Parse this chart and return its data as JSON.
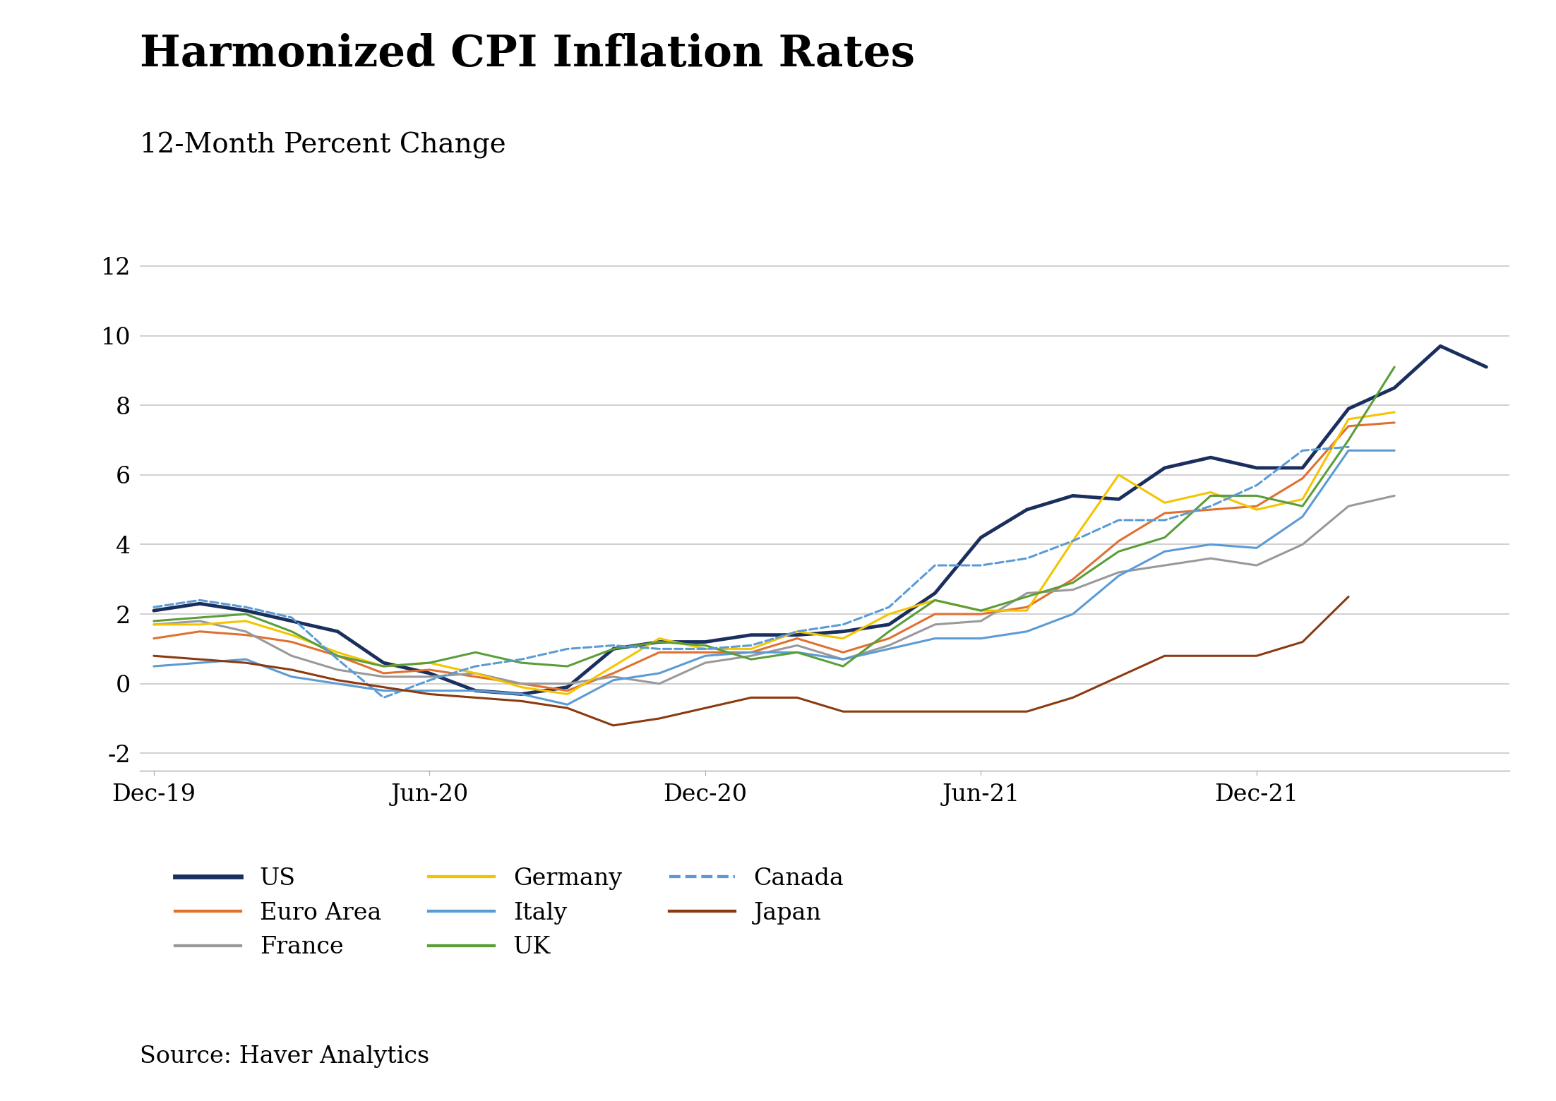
{
  "title": "Harmonized CPI Inflation Rates",
  "subtitle": "12-Month Percent Change",
  "source": "Source: Haver Analytics",
  "ylim": [
    -2.5,
    13.0
  ],
  "yticks": [
    -2,
    0,
    2,
    4,
    6,
    8,
    10,
    12
  ],
  "background_color": "#ffffff",
  "grid_color": "#c8c8c8",
  "series": {
    "US": {
      "color": "#1a2f5e",
      "linewidth": 3.5,
      "linestyle": "solid",
      "data": [
        2.1,
        2.3,
        2.1,
        1.8,
        1.5,
        0.6,
        0.3,
        -0.2,
        -0.3,
        -0.1,
        1.0,
        1.2,
        1.2,
        1.4,
        1.4,
        1.5,
        1.7,
        2.6,
        4.2,
        5.0,
        5.4,
        5.3,
        6.2,
        6.5,
        6.2,
        6.2,
        7.9,
        8.5,
        9.7,
        9.1
      ]
    },
    "Euro Area": {
      "color": "#e07030",
      "linewidth": 2.2,
      "linestyle": "solid",
      "data": [
        1.3,
        1.5,
        1.4,
        1.2,
        0.8,
        0.3,
        0.4,
        0.2,
        0.0,
        -0.2,
        0.3,
        0.9,
        0.9,
        0.9,
        1.3,
        0.9,
        1.3,
        2.0,
        2.0,
        2.2,
        3.0,
        4.1,
        4.9,
        5.0,
        5.1,
        5.9,
        7.4,
        7.5
      ]
    },
    "France": {
      "color": "#999999",
      "linewidth": 2.2,
      "linestyle": "solid",
      "data": [
        1.7,
        1.8,
        1.5,
        0.8,
        0.4,
        0.2,
        0.2,
        0.3,
        0.0,
        0.0,
        0.2,
        0.0,
        0.6,
        0.8,
        1.1,
        0.7,
        1.1,
        1.7,
        1.8,
        2.6,
        2.7,
        3.2,
        3.4,
        3.6,
        3.4,
        4.0,
        5.1,
        5.4
      ]
    },
    "Germany": {
      "color": "#f5c400",
      "linewidth": 2.2,
      "linestyle": "solid",
      "data": [
        1.7,
        1.7,
        1.8,
        1.4,
        0.9,
        0.5,
        0.6,
        0.3,
        -0.1,
        -0.3,
        0.5,
        1.3,
        1.0,
        1.0,
        1.5,
        1.3,
        2.0,
        2.4,
        2.1,
        2.1,
        4.1,
        6.0,
        5.2,
        5.5,
        5.0,
        5.3,
        7.6,
        7.8
      ]
    },
    "Italy": {
      "color": "#5b9bd5",
      "linewidth": 2.2,
      "linestyle": "solid",
      "data": [
        0.5,
        0.6,
        0.7,
        0.2,
        0.0,
        -0.2,
        -0.2,
        -0.2,
        -0.3,
        -0.6,
        0.1,
        0.3,
        0.8,
        0.9,
        0.9,
        0.7,
        1.0,
        1.3,
        1.3,
        1.5,
        2.0,
        3.1,
        3.8,
        4.0,
        3.9,
        4.8,
        6.7,
        6.7
      ]
    },
    "UK": {
      "color": "#5a9e3a",
      "linewidth": 2.2,
      "linestyle": "solid",
      "data": [
        1.8,
        1.9,
        2.0,
        1.5,
        0.8,
        0.5,
        0.6,
        0.9,
        0.6,
        0.5,
        1.0,
        1.2,
        1.1,
        0.7,
        0.9,
        0.5,
        1.5,
        2.4,
        2.1,
        2.5,
        2.9,
        3.8,
        4.2,
        5.4,
        5.4,
        5.1,
        7.0,
        9.1
      ]
    },
    "Canada": {
      "color": "#5b9bd5",
      "linewidth": 2.2,
      "linestyle": "dashed",
      "data": [
        2.2,
        2.4,
        2.2,
        1.9,
        0.7,
        -0.4,
        0.1,
        0.5,
        0.7,
        1.0,
        1.1,
        1.0,
        1.0,
        1.1,
        1.5,
        1.7,
        2.2,
        3.4,
        3.4,
        3.6,
        4.1,
        4.7,
        4.7,
        5.1,
        5.7,
        6.7,
        6.8
      ]
    },
    "Japan": {
      "color": "#8b3a0f",
      "linewidth": 2.2,
      "linestyle": "solid",
      "data": [
        0.8,
        0.7,
        0.6,
        0.4,
        0.1,
        -0.1,
        -0.3,
        -0.4,
        -0.5,
        -0.7,
        -1.2,
        -1.0,
        -0.7,
        -0.4,
        -0.4,
        -0.8,
        -0.8,
        -0.8,
        -0.8,
        -0.8,
        -0.4,
        0.2,
        0.8,
        0.8,
        0.8,
        1.2,
        2.5
      ]
    }
  },
  "n_months": 30,
  "x_tick_positions": [
    0,
    6,
    12,
    18,
    24
  ],
  "x_tick_labels": [
    "Dec-19",
    "Jun-20",
    "Dec-20",
    "Jun-21",
    "Dec-21"
  ],
  "legend_entries": [
    {
      "label": "US",
      "color": "#1a2f5e",
      "linestyle": "solid",
      "linewidth": 3.5
    },
    {
      "label": "Euro Area",
      "color": "#e07030",
      "linestyle": "solid",
      "linewidth": 2.2
    },
    {
      "label": "France",
      "color": "#999999",
      "linestyle": "solid",
      "linewidth": 2.2
    },
    {
      "label": "Germany",
      "color": "#f5c400",
      "linestyle": "solid",
      "linewidth": 2.2
    },
    {
      "label": "Italy",
      "color": "#5b9bd5",
      "linestyle": "solid",
      "linewidth": 2.2
    },
    {
      "label": "UK",
      "color": "#5a9e3a",
      "linestyle": "solid",
      "linewidth": 2.2
    },
    {
      "label": "Canada",
      "color": "#5b9bd5",
      "linestyle": "dashed",
      "linewidth": 2.2
    },
    {
      "label": "Japan",
      "color": "#8b3a0f",
      "linestyle": "solid",
      "linewidth": 2.2
    }
  ]
}
